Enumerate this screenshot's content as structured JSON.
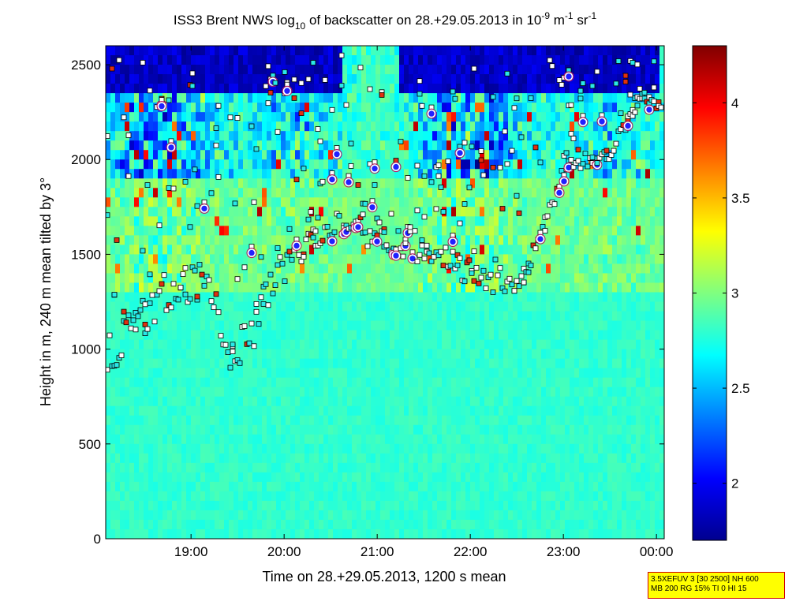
{
  "chart_data": {
    "type": "heatmap",
    "title": {
      "prefix": "ISS3 Brent NWS log",
      "log_base": "10",
      "middle": " of backscatter on 28.+29.05.2013 in 10",
      "exp1": "-9",
      "unit1": " m",
      "exp2": "-1",
      "unit2": " sr",
      "exp3": "-1"
    },
    "xlabel": "Time on 28.+29.05.2013, 1200 s mean",
    "ylabel": "Height in m, 240 m mean tilted by 3°",
    "xlim": [
      "18:05",
      "00:05"
    ],
    "ylim": [
      0,
      2600
    ],
    "x_ticks": [
      "19:00",
      "20:00",
      "21:00",
      "22:00",
      "23:00",
      "00:00"
    ],
    "y_ticks": [
      0,
      500,
      1000,
      1500,
      2000,
      2500
    ],
    "colorbar": {
      "range": [
        1.7,
        4.3
      ],
      "ticks": [
        "2",
        "2.5",
        "3",
        "3.5",
        "4"
      ],
      "colormap": "jet"
    },
    "background_value_approx": 2.8,
    "cloud_base_series": [
      {
        "time": "18:05",
        "height": 820
      },
      {
        "time": "18:45",
        "height": 1210
      },
      {
        "time": "19:10",
        "height": 1260
      },
      {
        "time": "19:25",
        "height": 860
      },
      {
        "time": "19:35",
        "height": 900
      },
      {
        "time": "20:00",
        "height": 1350
      },
      {
        "time": "20:30",
        "height": 1600
      },
      {
        "time": "21:30",
        "height": 1450
      },
      {
        "time": "21:55",
        "height": 1300
      },
      {
        "time": "22:35",
        "height": 1280
      },
      {
        "time": "23:00",
        "height": 1900
      },
      {
        "time": "23:30",
        "height": 2000
      },
      {
        "time": "23:50",
        "height": 2300
      },
      {
        "time": "00:05",
        "height": 2250
      }
    ]
  },
  "info_box": {
    "line1": "3.5XEFUV 3 [30 2500] NH 600",
    "line2": "MB 200 RG 15% TI 0 HI 15"
  }
}
